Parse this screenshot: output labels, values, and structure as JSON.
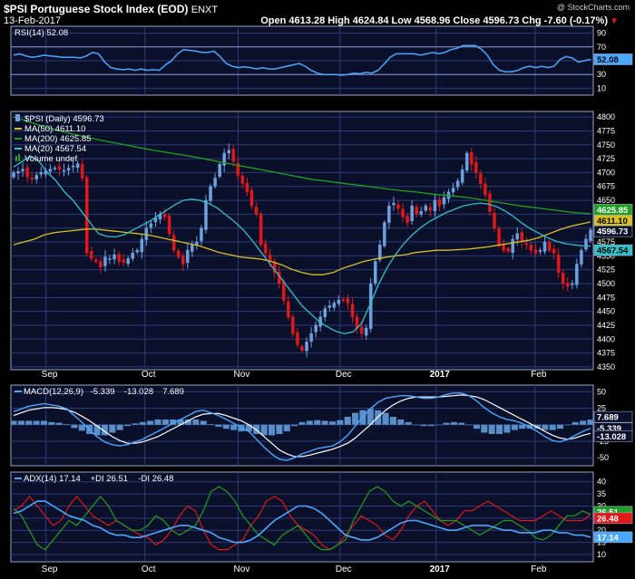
{
  "header": {
    "symbol_title": "$PSI Portuguese Stock Index (EOD)",
    "exchange": "ENXT",
    "watermark": "@ StockCharts.com",
    "date": "13-Feb-2017",
    "ohlc": "Open 4613.28  High 4624.84  Low 4568.96  Close 4596.73  Chg -7.60 (-0.17%)",
    "chg_arrow": "▼"
  },
  "colors": {
    "background": "#000000",
    "panel_bg": "#0a0f2a",
    "grid": "#2e3a78",
    "border": "#9aa3c8",
    "rsi_line": "#4aa8ff",
    "candle_up": "#6ea0dc",
    "candle_down": "#e01818",
    "ma50": "#d8c020",
    "ma200": "#20a020",
    "ma20": "#30c0c8",
    "macd_line": "#4aa8ff",
    "macd_signal": "#ffffff",
    "macd_hist": "#5a8ec8",
    "adx": "#4aa8ff",
    "pdi": "#20a020",
    "mdi": "#e01818"
  },
  "x_labels": [
    {
      "label": "Sep",
      "bold": false
    },
    {
      "label": "Oct",
      "bold": false
    },
    {
      "label": "Nov",
      "bold": false
    },
    {
      "label": "Dec",
      "bold": false
    },
    {
      "label": "2017",
      "bold": true
    },
    {
      "label": "Feb",
      "bold": false
    }
  ],
  "chart_data": [
    {
      "type": "line",
      "panel": "rsi",
      "legend": "RSI(14) 52.08",
      "last_value_label": "52.08",
      "y_ticks": [
        90,
        70,
        50,
        30,
        10
      ],
      "ylim": [
        0,
        100
      ],
      "values": [
        58,
        60,
        57,
        55,
        56,
        58,
        57,
        56,
        55,
        55,
        55,
        54,
        57,
        62,
        60,
        48,
        40,
        38,
        37,
        38,
        36,
        38,
        36,
        37,
        36,
        44,
        50,
        60,
        66,
        65,
        64,
        62,
        62,
        64,
        56,
        46,
        42,
        40,
        41,
        40,
        38,
        40,
        38,
        38,
        40,
        42,
        44,
        46,
        42,
        36,
        32,
        30,
        30,
        30,
        29,
        30,
        32,
        31,
        33,
        32,
        36,
        45,
        55,
        60,
        60,
        60,
        60,
        58,
        60,
        62,
        60,
        62,
        66,
        68,
        72,
        72,
        72,
        67,
        58,
        44,
        36,
        34,
        34,
        36,
        40,
        42,
        40,
        42,
        40,
        42,
        52,
        56,
        54,
        48,
        50,
        52
      ]
    },
    {
      "type": "candlestick",
      "panel": "price",
      "legend": [
        {
          "text": "$PSI (Daily) 4596.73",
          "color_key": "candle_up",
          "marker": "candle"
        },
        {
          "text": "MA(50) 4611.10",
          "color_key": "ma50",
          "marker": "line"
        },
        {
          "text": "MA(200) 4625.85",
          "color_key": "ma200",
          "marker": "line"
        },
        {
          "text": "MA(20) 4567.54",
          "color_key": "ma20",
          "marker": "line"
        },
        {
          "text": "Volume undef",
          "color_key": "ma200",
          "marker": "bars"
        }
      ],
      "y_ticks": [
        4800,
        4775,
        4750,
        4725,
        4700,
        4675,
        4650,
        4625,
        4600,
        4575,
        4550,
        4525,
        4500,
        4475,
        4450,
        4425,
        4400,
        4375,
        4350
      ],
      "ylim": [
        4345,
        4810
      ],
      "value_tags": [
        {
          "label": "4625.85",
          "value": 4625.85,
          "color_key": "ma200",
          "text_color": "#ffffff"
        },
        {
          "label": "4611.10",
          "value": 4611.1,
          "color_key": "ma50",
          "text_color": "#000000"
        },
        {
          "label": "4596.73",
          "value": 4596.73,
          "color_key": "panel_bg",
          "text_color": "#ffffff"
        },
        {
          "label": "4567.54",
          "value": 4567.54,
          "color_key": "ma20",
          "text_color": "#000000"
        }
      ],
      "closes": [
        4700,
        4702,
        4706,
        4692,
        4688,
        4695,
        4700,
        4703,
        4706,
        4708,
        4706,
        4704,
        4708,
        4712,
        4716,
        4690,
        4555,
        4545,
        4540,
        4530,
        4548,
        4545,
        4552,
        4540,
        4538,
        4545,
        4555,
        4560,
        4580,
        4600,
        4608,
        4618,
        4625,
        4620,
        4590,
        4560,
        4548,
        4535,
        4560,
        4570,
        4575,
        4600,
        4650,
        4675,
        4690,
        4715,
        4735,
        4740,
        4720,
        4695,
        4680,
        4665,
        4640,
        4625,
        4570,
        4555,
        4540,
        4520,
        4500,
        4470,
        4440,
        4410,
        4390,
        4380,
        4395,
        4410,
        4425,
        4440,
        4455,
        4460,
        4465,
        4470,
        4470,
        4465,
        4440,
        4420,
        4410,
        4420,
        4500,
        4540,
        4570,
        4610,
        4640,
        4645,
        4635,
        4620,
        4610,
        4640,
        4625,
        4630,
        4640,
        4632,
        4650,
        4640,
        4655,
        4665,
        4672,
        4685,
        4705,
        4735,
        4715,
        4700,
        4680,
        4660,
        4630,
        4600,
        4570,
        4560,
        4558,
        4580,
        4590,
        4575,
        4570,
        4560,
        4555,
        4560,
        4575,
        4560,
        4555,
        4520,
        4500,
        4495,
        4500,
        4535,
        4560,
        4580,
        4596.73
      ],
      "ma50": [
        4570,
        4575,
        4580,
        4588,
        4592,
        4594,
        4596,
        4598,
        4598,
        4596,
        4594,
        4592,
        4590,
        4588,
        4584,
        4580,
        4576,
        4572,
        4568,
        4562,
        4556,
        4552,
        4548,
        4546,
        4544,
        4540,
        4534,
        4526,
        4520,
        4516,
        4516,
        4520,
        4528,
        4534,
        4540,
        4544,
        4547,
        4550,
        4552,
        4556,
        4558,
        4560,
        4560,
        4561,
        4562,
        4564,
        4566,
        4569,
        4572,
        4575,
        4578,
        4583,
        4590,
        4597,
        4603,
        4607,
        4611.1
      ],
      "ma200": [
        4800,
        4790,
        4780,
        4772,
        4765,
        4758,
        4752,
        4746,
        4740,
        4735,
        4730,
        4724,
        4718,
        4712,
        4706,
        4700,
        4694,
        4688,
        4684,
        4680,
        4676,
        4672,
        4668,
        4665,
        4661,
        4658,
        4655,
        4650,
        4645,
        4640,
        4636,
        4632,
        4628,
        4625.85
      ],
      "ma20": [
        4710,
        4720,
        4730,
        4720,
        4700,
        4685,
        4665,
        4650,
        4630,
        4610,
        4590,
        4585,
        4584,
        4588,
        4596,
        4604,
        4612,
        4622,
        4632,
        4642,
        4650,
        4652,
        4650,
        4644,
        4636,
        4624,
        4612,
        4598,
        4580,
        4560,
        4540,
        4520,
        4500,
        4480,
        4460,
        4446,
        4432,
        4422,
        4414,
        4410,
        4413,
        4428,
        4462,
        4498,
        4528,
        4552,
        4572,
        4588,
        4601,
        4612,
        4620,
        4628,
        4634,
        4640,
        4643,
        4645,
        4643,
        4638,
        4630,
        4620,
        4608,
        4598,
        4590,
        4582,
        4576,
        4572,
        4570,
        4568,
        4567.54
      ]
    },
    {
      "type": "line",
      "panel": "macd",
      "legend": [
        {
          "text": "MACD(12,26,9)",
          "color_key": "macd_line",
          "marker": "line"
        },
        {
          "text": "-5.339",
          "color_key": "macd_line",
          "marker": "none"
        },
        {
          "text": "-13.028",
          "color_key": "macd_signal",
          "marker": "none"
        },
        {
          "text": "7.689",
          "color_key": "macd_line",
          "marker": "none"
        }
      ],
      "y_ticks": [
        50,
        25,
        0,
        -25,
        -50
      ],
      "ylim": [
        -62,
        60
      ],
      "value_tags": [
        {
          "label": "7.689",
          "value": 7.689,
          "color_key": "panel_bg",
          "text_color": "#ffffff"
        },
        {
          "label": "-5.339",
          "value": -5.339,
          "color_key": "panel_bg",
          "text_color": "#ffffff"
        },
        {
          "label": "-13.028",
          "value": -13.028,
          "color_key": "panel_bg",
          "text_color": "#ffffff"
        }
      ],
      "series": [
        {
          "name": "MACD",
          "color_key": "macd_line",
          "values": [
            20,
            24,
            28,
            30,
            32,
            30,
            28,
            24,
            14,
            4,
            -8,
            -18,
            -26,
            -30,
            -32,
            -30,
            -26,
            -22,
            -16,
            -10,
            -4,
            2,
            8,
            14,
            20,
            22,
            18,
            14,
            8,
            2,
            -4,
            -10,
            -22,
            -34,
            -44,
            -52,
            -54,
            -50,
            -44,
            -40,
            -36,
            -34,
            -32,
            -26,
            -16,
            -2,
            12,
            24,
            34,
            40,
            42,
            44,
            44,
            42,
            40,
            40,
            42,
            46,
            48,
            48,
            44,
            36,
            26,
            18,
            12,
            8,
            6,
            2,
            -4,
            -10,
            -18,
            -24,
            -26,
            -22,
            -16,
            -10,
            -5.339
          ]
        },
        {
          "name": "Signal",
          "color_key": "macd_signal",
          "values": [
            14,
            18,
            22,
            24,
            26,
            26,
            25,
            23,
            19,
            13,
            6,
            -2,
            -10,
            -18,
            -24,
            -28,
            -28,
            -26,
            -22,
            -18,
            -12,
            -6,
            0,
            6,
            12,
            16,
            17,
            17,
            14,
            10,
            6,
            0,
            -8,
            -18,
            -28,
            -38,
            -44,
            -48,
            -48,
            -46,
            -43,
            -40,
            -37,
            -33,
            -28,
            -20,
            -10,
            0,
            12,
            22,
            30,
            36,
            40,
            42,
            42,
            42,
            42,
            43,
            44,
            45,
            44,
            42,
            38,
            32,
            26,
            20,
            14,
            8,
            2,
            -4,
            -10,
            -16,
            -20,
            -22,
            -20,
            -16,
            -13.028
          ]
        },
        {
          "name": "Histogram",
          "color_key": "macd_hist",
          "values": [
            6,
            6,
            6,
            6,
            6,
            4,
            3,
            1,
            -5,
            -9,
            -14,
            -16,
            -16,
            -12,
            -8,
            -2,
            2,
            4,
            6,
            8,
            8,
            8,
            8,
            8,
            8,
            6,
            1,
            -3,
            -6,
            -8,
            -10,
            -10,
            -14,
            -16,
            -16,
            -14,
            -10,
            -2,
            4,
            6,
            7,
            6,
            5,
            7,
            12,
            18,
            22,
            24,
            22,
            18,
            12,
            8,
            4,
            0,
            -2,
            -2,
            0,
            3,
            4,
            3,
            0,
            -6,
            -12,
            -14,
            -14,
            -12,
            -8,
            -6,
            -6,
            -6,
            -8,
            -8,
            -6,
            0,
            4,
            6,
            7.689
          ]
        }
      ]
    },
    {
      "type": "line",
      "panel": "adx",
      "legend": [
        {
          "text": "ADX(14) 17.14",
          "color_key": "adx",
          "marker": "line"
        },
        {
          "text": "+DI 26.51",
          "color_key": "pdi",
          "marker": "none"
        },
        {
          "text": "-DI 26.48",
          "color_key": "mdi",
          "marker": "none"
        }
      ],
      "y_ticks": [
        40,
        35,
        30,
        25,
        20,
        15,
        10
      ],
      "ylim": [
        7,
        44
      ],
      "value_tags": [
        {
          "label": "26.51",
          "value": 26.51,
          "color_key": "pdi",
          "text_color": "#ffffff"
        },
        {
          "label": "26.48",
          "value": 26.48,
          "color_key": "mdi",
          "text_color": "#ffffff"
        },
        {
          "label": "17.14",
          "value": 17.14,
          "color_key": "adx",
          "text_color": "#ffffff"
        }
      ],
      "series": [
        {
          "name": "ADX",
          "color_key": "adx",
          "values": [
            27,
            28,
            30,
            32,
            32,
            30,
            28,
            26,
            25,
            24,
            22,
            21,
            19,
            18,
            18,
            17,
            17,
            18,
            19,
            20,
            21,
            22,
            22,
            21,
            20,
            19,
            17,
            16,
            15,
            15,
            16,
            18,
            21,
            24,
            26,
            28,
            30,
            30,
            29,
            27,
            24,
            21,
            18,
            17,
            16,
            16,
            17,
            19,
            21,
            23,
            24,
            24,
            23,
            22,
            21,
            20,
            20,
            21,
            22,
            22,
            22,
            21,
            20,
            20,
            19,
            19,
            19,
            20,
            20,
            19,
            19,
            18,
            18,
            17.14
          ]
        },
        {
          "name": "+DI",
          "color_key": "pdi",
          "values": [
            29,
            26,
            20,
            14,
            12,
            16,
            20,
            24,
            22,
            26,
            30,
            34,
            30,
            24,
            22,
            20,
            20,
            22,
            26,
            24,
            20,
            18,
            20,
            22,
            28,
            36,
            38,
            36,
            32,
            26,
            22,
            18,
            16,
            14,
            18,
            20,
            22,
            18,
            14,
            12,
            12,
            14,
            16,
            24,
            30,
            36,
            38,
            36,
            32,
            30,
            32,
            30,
            28,
            26,
            24,
            24,
            24,
            22,
            20,
            18,
            20,
            22,
            24,
            24,
            22,
            20,
            17,
            16,
            18,
            22,
            26,
            26,
            28,
            26.51
          ]
        },
        {
          "name": "-DI",
          "color_key": "mdi",
          "values": [
            28,
            30,
            34,
            30,
            26,
            22,
            24,
            30,
            34,
            30,
            26,
            24,
            22,
            24,
            22,
            20,
            18,
            17,
            14,
            16,
            20,
            26,
            30,
            28,
            20,
            14,
            12,
            12,
            14,
            16,
            22,
            26,
            32,
            34,
            32,
            26,
            22,
            20,
            18,
            14,
            12,
            14,
            18,
            22,
            26,
            24,
            22,
            18,
            16,
            20,
            26,
            30,
            32,
            28,
            24,
            22,
            24,
            28,
            28,
            30,
            32,
            30,
            28,
            26,
            24,
            24,
            24,
            26,
            28,
            26,
            24,
            24,
            24,
            26.48
          ]
        }
      ]
    }
  ]
}
